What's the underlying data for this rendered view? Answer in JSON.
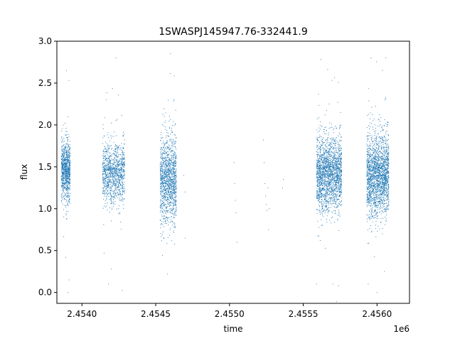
{
  "chart_data": {
    "type": "scatter",
    "title": "1SWASPJ145947.76-332441.9",
    "xlabel": "time",
    "ylabel": "flux",
    "x_offset_label": "1e6",
    "xlim": [
      2453830,
      2456220
    ],
    "ylim": [
      -0.13,
      3.0
    ],
    "x_ticks": [
      2454000,
      2454500,
      2455000,
      2455500,
      2456000
    ],
    "x_tick_labels": [
      "2.4540",
      "2.4545",
      "2.4550",
      "2.4555",
      "2.4560"
    ],
    "y_ticks": [
      0.0,
      0.5,
      1.0,
      1.5,
      2.0,
      2.5,
      3.0
    ],
    "y_tick_labels": [
      "0.0",
      "0.5",
      "1.0",
      "1.5",
      "2.0",
      "2.5",
      "3.0"
    ],
    "grid": false,
    "marker_color": "#1f77b4",
    "observing_seasons": [
      {
        "x_start": 2453860,
        "x_end": 2453920,
        "flux_center": 1.45,
        "flux_spread": 0.17,
        "n_points": 900
      },
      {
        "x_start": 2454140,
        "x_end": 2454290,
        "flux_center": 1.42,
        "flux_spread": 0.18,
        "n_points": 1100
      },
      {
        "x_start": 2454530,
        "x_end": 2454640,
        "flux_center": 1.35,
        "flux_spread": 0.25,
        "n_points": 1300
      },
      {
        "x_start": 2455590,
        "x_end": 2455760,
        "flux_center": 1.42,
        "flux_spread": 0.22,
        "n_points": 2000
      },
      {
        "x_start": 2455930,
        "x_end": 2456080,
        "flux_center": 1.4,
        "flux_spread": 0.24,
        "n_points": 2000
      }
    ],
    "outlier_points": [
      [
        2454690,
        1.4
      ],
      [
        2454700,
        0.65
      ],
      [
        2454700,
        1.2
      ],
      [
        2455030,
        1.55
      ],
      [
        2455035,
        1.3
      ],
      [
        2455040,
        1.1
      ],
      [
        2455045,
        0.95
      ],
      [
        2455050,
        0.6
      ],
      [
        2455230,
        1.82
      ],
      [
        2455235,
        1.55
      ],
      [
        2455240,
        1.3
      ],
      [
        2455245,
        1.15
      ],
      [
        2455250,
        1.05
      ],
      [
        2455255,
        0.98
      ],
      [
        2455260,
        1.25
      ],
      [
        2455265,
        0.75
      ],
      [
        2455270,
        1.0
      ],
      [
        2455360,
        1.25
      ],
      [
        2455365,
        1.35
      ],
      [
        2453895,
        2.65
      ],
      [
        2453905,
        0.0
      ],
      [
        2453912,
        0.15
      ],
      [
        2453890,
        0.42
      ],
      [
        2454230,
        2.8
      ],
      [
        2454180,
        0.1
      ],
      [
        2454200,
        0.28
      ],
      [
        2454150,
        0.47
      ],
      [
        2454580,
        0.22
      ],
      [
        2454600,
        2.85
      ],
      [
        2455620,
        2.78
      ],
      [
        2455590,
        0.1
      ],
      [
        2455700,
        0.1
      ],
      [
        2455740,
        0.08
      ],
      [
        2455960,
        2.8
      ],
      [
        2456060,
        2.8
      ],
      [
        2455940,
        0.1
      ],
      [
        2456000,
        0.0
      ],
      [
        2456050,
        0.25
      ]
    ]
  }
}
